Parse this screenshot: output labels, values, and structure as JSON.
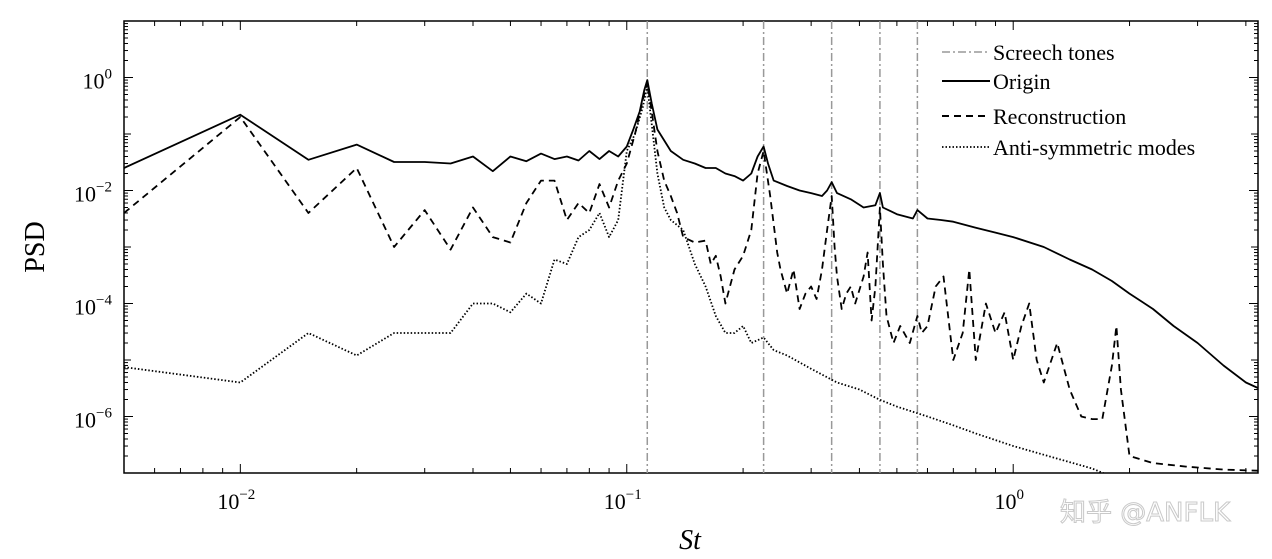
{
  "chart_data": {
    "type": "line",
    "xlabel": "St",
    "ylabel": "PSD",
    "xscale": "log",
    "yscale": "log",
    "xlim": [
      0.005,
      4.3
    ],
    "ylim": [
      1e-07,
      10
    ],
    "x_ticks": [
      {
        "value": 0.01,
        "base": "10",
        "exp": "−2"
      },
      {
        "value": 0.1,
        "base": "10",
        "exp": "−1"
      },
      {
        "value": 1,
        "base": "10",
        "exp": "0"
      }
    ],
    "y_ticks": [
      {
        "value": 1,
        "base": "10",
        "exp": "0"
      },
      {
        "value": 0.01,
        "base": "10",
        "exp": "−2"
      },
      {
        "value": 0.0001,
        "base": "10",
        "exp": "−4"
      },
      {
        "value": 1e-06,
        "base": "10",
        "exp": "−6"
      }
    ],
    "legend": {
      "placement": "top-right",
      "entries": [
        {
          "label": "Screech tones",
          "style": "dashdot",
          "color": "#999999"
        },
        {
          "label": "Origin",
          "style": "solid",
          "color": "#000000"
        },
        {
          "label": "Reconstruction",
          "style": "dashed",
          "color": "#000000"
        },
        {
          "label": "Anti-symmetric modes",
          "style": "dotted",
          "color": "#000000"
        }
      ]
    },
    "screech_tones_x": [
      0.113,
      0.226,
      0.339,
      0.452,
      0.565
    ],
    "series": [
      {
        "name": "Origin",
        "style": "solid",
        "points": [
          [
            0.005,
            0.025
          ],
          [
            0.01,
            0.22
          ],
          [
            0.015,
            0.035
          ],
          [
            0.02,
            0.065
          ],
          [
            0.025,
            0.032
          ],
          [
            0.03,
            0.032
          ],
          [
            0.035,
            0.03
          ],
          [
            0.04,
            0.04
          ],
          [
            0.045,
            0.022
          ],
          [
            0.05,
            0.04
          ],
          [
            0.055,
            0.033
          ],
          [
            0.06,
            0.045
          ],
          [
            0.065,
            0.036
          ],
          [
            0.07,
            0.04
          ],
          [
            0.075,
            0.034
          ],
          [
            0.08,
            0.05
          ],
          [
            0.085,
            0.036
          ],
          [
            0.09,
            0.05
          ],
          [
            0.095,
            0.04
          ],
          [
            0.1,
            0.06
          ],
          [
            0.104,
            0.12
          ],
          [
            0.108,
            0.25
          ],
          [
            0.111,
            0.6
          ],
          [
            0.113,
            0.9
          ],
          [
            0.116,
            0.35
          ],
          [
            0.12,
            0.12
          ],
          [
            0.13,
            0.05
          ],
          [
            0.14,
            0.035
          ],
          [
            0.15,
            0.03
          ],
          [
            0.16,
            0.025
          ],
          [
            0.17,
            0.025
          ],
          [
            0.18,
            0.02
          ],
          [
            0.19,
            0.018
          ],
          [
            0.2,
            0.015
          ],
          [
            0.21,
            0.02
          ],
          [
            0.218,
            0.04
          ],
          [
            0.226,
            0.06
          ],
          [
            0.232,
            0.03
          ],
          [
            0.24,
            0.015
          ],
          [
            0.26,
            0.012
          ],
          [
            0.28,
            0.01
          ],
          [
            0.3,
            0.009
          ],
          [
            0.32,
            0.008
          ],
          [
            0.33,
            0.01
          ],
          [
            0.339,
            0.014
          ],
          [
            0.35,
            0.009
          ],
          [
            0.38,
            0.007
          ],
          [
            0.41,
            0.005
          ],
          [
            0.44,
            0.0055
          ],
          [
            0.452,
            0.009
          ],
          [
            0.46,
            0.005
          ],
          [
            0.5,
            0.0038
          ],
          [
            0.55,
            0.0032
          ],
          [
            0.565,
            0.0045
          ],
          [
            0.6,
            0.0032
          ],
          [
            0.65,
            0.003
          ],
          [
            0.7,
            0.0028
          ],
          [
            0.8,
            0.0022
          ],
          [
            0.9,
            0.0018
          ],
          [
            1.0,
            0.0015
          ],
          [
            1.2,
            0.001
          ],
          [
            1.4,
            0.0006
          ],
          [
            1.6,
            0.0004
          ],
          [
            1.8,
            0.00025
          ],
          [
            2.0,
            0.00015
          ],
          [
            2.3,
            8e-05
          ],
          [
            2.6,
            4e-05
          ],
          [
            3.0,
            2e-05
          ],
          [
            3.5,
            8e-06
          ],
          [
            4.0,
            4e-06
          ],
          [
            4.3,
            3.2e-06
          ]
        ]
      },
      {
        "name": "Reconstruction",
        "style": "dashed",
        "points": [
          [
            0.005,
            0.004
          ],
          [
            0.01,
            0.2
          ],
          [
            0.015,
            0.004
          ],
          [
            0.02,
            0.025
          ],
          [
            0.025,
            0.001
          ],
          [
            0.03,
            0.0045
          ],
          [
            0.035,
            0.0009
          ],
          [
            0.04,
            0.005
          ],
          [
            0.045,
            0.0015
          ],
          [
            0.05,
            0.0012
          ],
          [
            0.055,
            0.006
          ],
          [
            0.06,
            0.015
          ],
          [
            0.065,
            0.015
          ],
          [
            0.07,
            0.003
          ],
          [
            0.075,
            0.006
          ],
          [
            0.08,
            0.004
          ],
          [
            0.085,
            0.013
          ],
          [
            0.09,
            0.005
          ],
          [
            0.095,
            0.015
          ],
          [
            0.1,
            0.03
          ],
          [
            0.105,
            0.1
          ],
          [
            0.11,
            0.4
          ],
          [
            0.113,
            0.8
          ],
          [
            0.116,
            0.25
          ],
          [
            0.12,
            0.05
          ],
          [
            0.125,
            0.015
          ],
          [
            0.13,
            0.008
          ],
          [
            0.135,
            0.004
          ],
          [
            0.14,
            0.0015
          ],
          [
            0.15,
            0.0012
          ],
          [
            0.16,
            0.0013
          ],
          [
            0.165,
            0.0005
          ],
          [
            0.17,
            0.0007
          ],
          [
            0.175,
            0.0003
          ],
          [
            0.18,
            0.0001
          ],
          [
            0.19,
            0.0004
          ],
          [
            0.2,
            0.0007
          ],
          [
            0.21,
            0.002
          ],
          [
            0.218,
            0.02
          ],
          [
            0.226,
            0.05
          ],
          [
            0.235,
            0.008
          ],
          [
            0.245,
            0.0008
          ],
          [
            0.25,
            0.0004
          ],
          [
            0.26,
            0.00015
          ],
          [
            0.27,
            0.0004
          ],
          [
            0.28,
            8e-05
          ],
          [
            0.29,
            0.00015
          ],
          [
            0.3,
            0.0002
          ],
          [
            0.31,
            0.00012
          ],
          [
            0.32,
            0.0004
          ],
          [
            0.33,
            0.002
          ],
          [
            0.339,
            0.008
          ],
          [
            0.345,
            0.001
          ],
          [
            0.35,
            0.0003
          ],
          [
            0.36,
            8e-05
          ],
          [
            0.37,
            0.00015
          ],
          [
            0.38,
            0.0002
          ],
          [
            0.39,
            0.0001
          ],
          [
            0.41,
            0.0003
          ],
          [
            0.42,
            0.0008
          ],
          [
            0.43,
            5e-05
          ],
          [
            0.44,
            0.0002
          ],
          [
            0.452,
            0.005
          ],
          [
            0.46,
            0.0005
          ],
          [
            0.47,
            6e-05
          ],
          [
            0.49,
            2e-05
          ],
          [
            0.51,
            4e-05
          ],
          [
            0.54,
            2e-05
          ],
          [
            0.565,
            6e-05
          ],
          [
            0.58,
            3e-05
          ],
          [
            0.6,
            4e-05
          ],
          [
            0.63,
            0.0002
          ],
          [
            0.66,
            0.0003
          ],
          [
            0.7,
            1e-05
          ],
          [
            0.74,
            3e-05
          ],
          [
            0.77,
            0.0004
          ],
          [
            0.8,
            1e-05
          ],
          [
            0.85,
            0.0001
          ],
          [
            0.9,
            3e-05
          ],
          [
            0.95,
            7e-05
          ],
          [
            1.0,
            1e-05
          ],
          [
            1.05,
            4e-05
          ],
          [
            1.1,
            0.0001
          ],
          [
            1.15,
            1e-05
          ],
          [
            1.2,
            4e-06
          ],
          [
            1.3,
            2e-05
          ],
          [
            1.4,
            3e-06
          ],
          [
            1.5,
            1e-06
          ],
          [
            1.6,
            9e-07
          ],
          [
            1.7,
            9e-07
          ],
          [
            1.8,
            8e-06
          ],
          [
            1.85,
            4e-05
          ],
          [
            1.9,
            3e-06
          ],
          [
            2.0,
            2e-07
          ],
          [
            2.3,
            1.5e-07
          ],
          [
            2.8,
            1.3e-07
          ],
          [
            3.5,
            1.15e-07
          ],
          [
            4.3,
            1.1e-07
          ]
        ]
      },
      {
        "name": "Anti-symmetric modes",
        "style": "dotted",
        "points": [
          [
            0.005,
            7.5e-06
          ],
          [
            0.01,
            4e-06
          ],
          [
            0.015,
            3e-05
          ],
          [
            0.02,
            1.2e-05
          ],
          [
            0.025,
            3e-05
          ],
          [
            0.03,
            3e-05
          ],
          [
            0.035,
            3e-05
          ],
          [
            0.04,
            0.0001
          ],
          [
            0.045,
            0.0001
          ],
          [
            0.05,
            7e-05
          ],
          [
            0.055,
            0.00015
          ],
          [
            0.06,
            0.0001
          ],
          [
            0.065,
            0.0006
          ],
          [
            0.07,
            0.0005
          ],
          [
            0.075,
            0.0015
          ],
          [
            0.08,
            0.002
          ],
          [
            0.085,
            0.004
          ],
          [
            0.09,
            0.0015
          ],
          [
            0.095,
            0.003
          ],
          [
            0.1,
            0.05
          ],
          [
            0.105,
            0.1
          ],
          [
            0.11,
            0.3
          ],
          [
            0.113,
            0.7
          ],
          [
            0.116,
            0.15
          ],
          [
            0.12,
            0.02
          ],
          [
            0.125,
            0.005
          ],
          [
            0.13,
            0.003
          ],
          [
            0.14,
            0.002
          ],
          [
            0.15,
            0.0005
          ],
          [
            0.16,
            0.0002
          ],
          [
            0.17,
            6e-05
          ],
          [
            0.18,
            3e-05
          ],
          [
            0.19,
            3e-05
          ],
          [
            0.2,
            4e-05
          ],
          [
            0.21,
            2e-05
          ],
          [
            0.226,
            2.5e-05
          ],
          [
            0.24,
            1.5e-05
          ],
          [
            0.26,
            1.2e-05
          ],
          [
            0.3,
            7e-06
          ],
          [
            0.35,
            4e-06
          ],
          [
            0.4,
            3e-06
          ],
          [
            0.45,
            2e-06
          ],
          [
            0.5,
            1.5e-06
          ],
          [
            0.6,
            1e-06
          ],
          [
            0.7,
            7e-07
          ],
          [
            0.8,
            5e-07
          ],
          [
            1.0,
            3e-07
          ],
          [
            1.3,
            1.8e-07
          ],
          [
            1.6,
            1.2e-07
          ],
          [
            1.85,
            8e-08
          ]
        ]
      }
    ]
  }
}
